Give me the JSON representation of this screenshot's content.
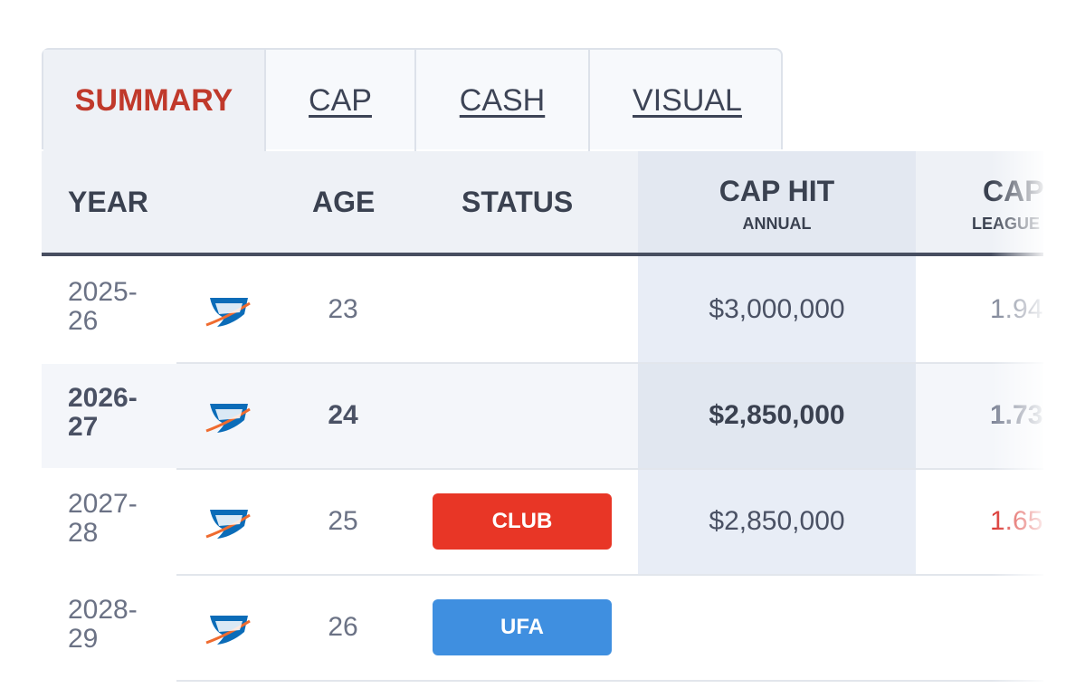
{
  "tabs": [
    "SUMMARY",
    "CAP",
    "CASH",
    "VISUAL"
  ],
  "table": {
    "headers": {
      "year": "YEAR",
      "age": "AGE",
      "status": "STATUS",
      "cap_hit": "CAP HIT",
      "cap_hit_sub": "ANNUAL",
      "cap_pct": "CAP",
      "cap_pct_sub": "LEAGUE"
    },
    "rows": [
      {
        "year": "2025-26",
        "age": "23",
        "cap_hit": "$3,000,000",
        "cap_pct": "1.94"
      },
      {
        "year": "2026-27",
        "age": "24",
        "cap_hit": "$2,850,000",
        "cap_pct": "1.73"
      },
      {
        "year": "2027-28",
        "age": "25",
        "status": "CLUB",
        "cap_hit": "$2,850,000",
        "cap_pct": "1.65"
      },
      {
        "year": "2028-29",
        "age": "26",
        "status": "UFA"
      }
    ]
  }
}
